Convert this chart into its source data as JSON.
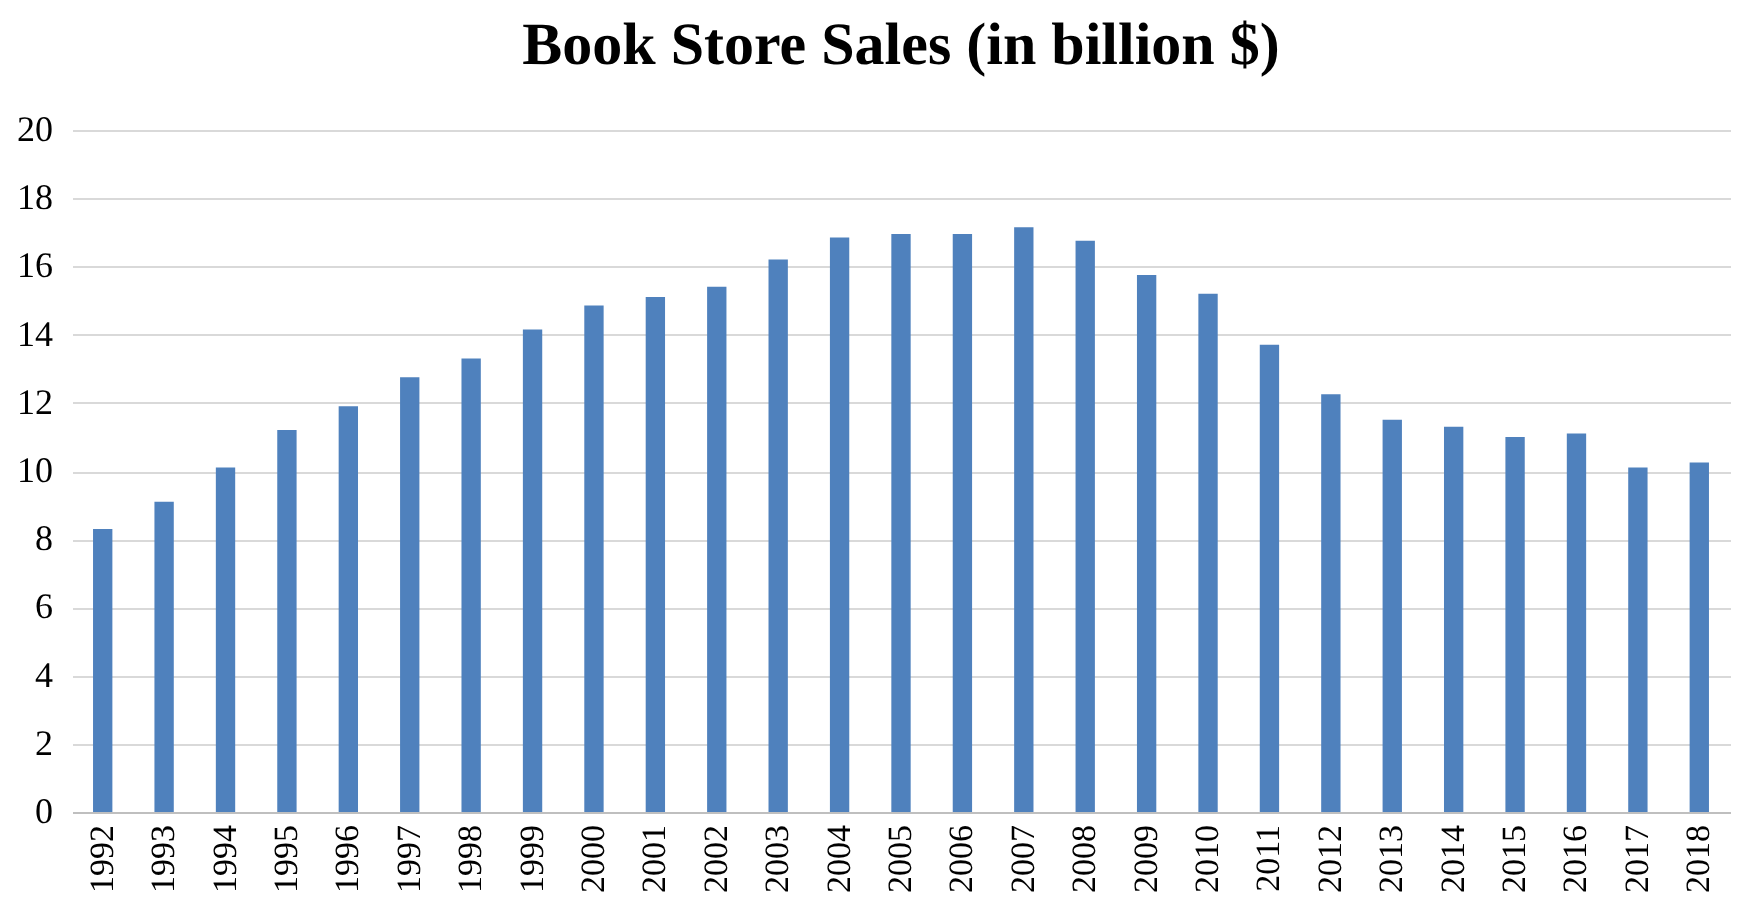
{
  "chart_data": {
    "type": "bar",
    "title": "Book Store Sales (in billion $)",
    "categories": [
      "1992",
      "1993",
      "1994",
      "1995",
      "1996",
      "1997",
      "1998",
      "1999",
      "2000",
      "2001",
      "2002",
      "2003",
      "2004",
      "2005",
      "2006",
      "2007",
      "2008",
      "2009",
      "2010",
      "2011",
      "2012",
      "2013",
      "2014",
      "2015",
      "2016",
      "2017",
      "2018"
    ],
    "values": [
      8.3,
      9.1,
      10.1,
      11.2,
      11.9,
      12.75,
      13.3,
      14.15,
      14.85,
      15.1,
      15.4,
      16.2,
      16.85,
      16.95,
      16.95,
      17.15,
      16.75,
      15.75,
      15.2,
      13.7,
      12.25,
      11.5,
      11.3,
      11.0,
      11.1,
      10.1,
      10.25
    ],
    "color": "#4f81bd",
    "ylim": [
      0,
      20
    ],
    "yticks": [
      0,
      2,
      4,
      6,
      8,
      10,
      12,
      14,
      16,
      18,
      20
    ],
    "grid": "y"
  }
}
